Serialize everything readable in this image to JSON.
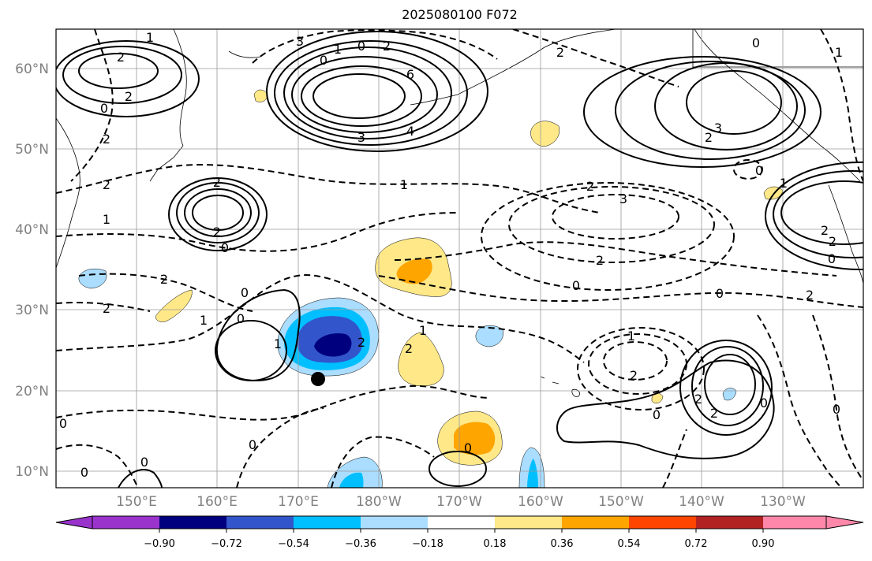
{
  "title": "2025080100 F072",
  "lat_labels": [
    "60°N",
    "50°N",
    "40°N",
    "30°N",
    "20°N",
    "10°N"
  ],
  "lon_labels": [
    "150°E",
    "160°E",
    "170°E",
    "180°W",
    "170°W",
    "160°W",
    "150°W",
    "140°W",
    "130°W"
  ],
  "colorbar": {
    "tick_labels": [
      "−0.90",
      "−0.72",
      "−0.54",
      "−0.36",
      "−0.18",
      "0.18",
      "0.36",
      "0.54",
      "0.72",
      "0.90"
    ],
    "colors": [
      "#9933cc",
      "#00007f",
      "#3355cc",
      "#00bfff",
      "#aaddff",
      "#ffffff",
      "#ffe888",
      "#ffa500",
      "#ff4500",
      "#b22222",
      "#ff88aa"
    ]
  },
  "contour_labels": [
    "1",
    "2",
    "2",
    "0",
    "2",
    "2",
    "1",
    "3",
    "0",
    "6",
    "3",
    "4",
    "2",
    "0",
    "3",
    "2",
    "1",
    "0",
    "2",
    "1",
    "2",
    "3",
    "2",
    "0",
    "2",
    "0",
    "2",
    "1",
    "2",
    "0",
    "2",
    "0",
    "2",
    "1",
    "0",
    "1",
    "2",
    "1",
    "2",
    "2",
    "0",
    "2",
    "0",
    "0",
    "0",
    "0",
    "0",
    "0",
    "0",
    "2",
    "2",
    "1",
    "0",
    "0",
    "1",
    "2"
  ],
  "marker": "black-dot"
}
